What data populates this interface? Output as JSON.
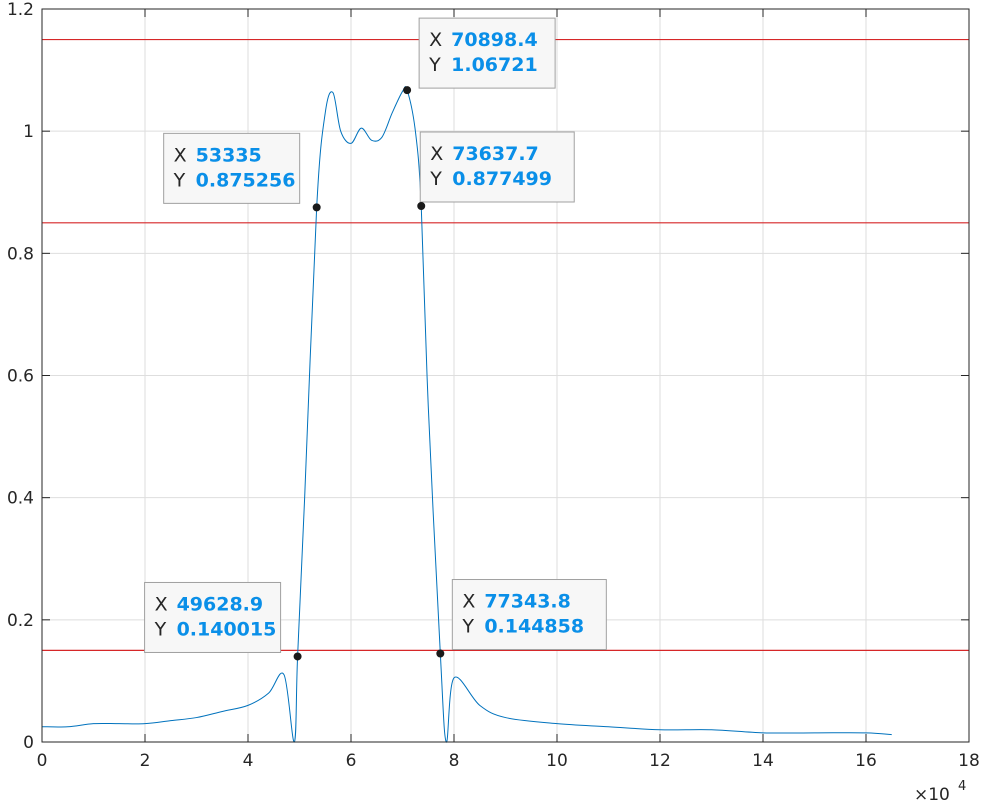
{
  "chart_data": {
    "type": "line",
    "title": "",
    "xlabel": "",
    "ylabel": "",
    "xlim": [
      0,
      180000
    ],
    "ylim": [
      0,
      1.2
    ],
    "x_exponent_label": "×10",
    "x_exponent_power": "4",
    "x_ticks": [
      0,
      20000,
      40000,
      60000,
      80000,
      100000,
      120000,
      140000,
      160000,
      180000
    ],
    "x_tick_labels": [
      "0",
      "2",
      "4",
      "6",
      "8",
      "10",
      "12",
      "14",
      "16",
      "18"
    ],
    "y_ticks": [
      0,
      0.2,
      0.4,
      0.6,
      0.8,
      1.0,
      1.2
    ],
    "y_tick_labels": [
      "0",
      "0.2",
      "0.4",
      "0.6",
      "0.8",
      "1",
      "1.2"
    ],
    "grid": true,
    "colors": {
      "series": "#0072bd",
      "threshold": "#d62728",
      "grid": "#dedede",
      "tip_value": "#0a8fe8"
    },
    "threshold_lines": [
      0.15,
      0.85,
      1.15
    ],
    "series": {
      "x": [
        0,
        5000,
        10000,
        15000,
        20000,
        25000,
        30000,
        35000,
        40000,
        44000,
        47000,
        49000,
        49628.9,
        51000,
        53335,
        55000,
        56500,
        58000,
        60000,
        62000,
        64000,
        66000,
        68000,
        70000,
        70898.4,
        72500,
        73637.7,
        75000,
        77343.8,
        78500,
        80000,
        85000,
        90000,
        100000,
        110000,
        120000,
        130000,
        140000,
        150000,
        160000,
        165000
      ],
      "y": [
        0.025,
        0.025,
        0.03,
        0.03,
        0.03,
        0.035,
        0.04,
        0.05,
        0.06,
        0.08,
        0.11,
        0.0,
        0.140015,
        0.4,
        0.875256,
        1.03,
        1.063,
        1.0,
        0.98,
        1.005,
        0.985,
        0.99,
        1.03,
        1.065,
        1.06721,
        1.0,
        0.877499,
        0.55,
        0.144858,
        0.0,
        0.105,
        0.06,
        0.04,
        0.03,
        0.025,
        0.02,
        0.02,
        0.015,
        0.015,
        0.015,
        0.012
      ]
    },
    "datatips": [
      {
        "x": 70898.4,
        "y": 1.06721,
        "x_text": "70898.4",
        "y_text": "1.06721"
      },
      {
        "x": 53335,
        "y": 0.875256,
        "x_text": "53335",
        "y_text": "0.875256"
      },
      {
        "x": 73637.7,
        "y": 0.877499,
        "x_text": "73637.7",
        "y_text": "0.877499"
      },
      {
        "x": 49628.9,
        "y": 0.140015,
        "x_text": "49628.9",
        "y_text": "0.140015"
      },
      {
        "x": 77343.8,
        "y": 0.144858,
        "x_text": "77343.8",
        "y_text": "0.144858"
      }
    ],
    "datatip_key_x": "X",
    "datatip_key_y": "Y"
  }
}
